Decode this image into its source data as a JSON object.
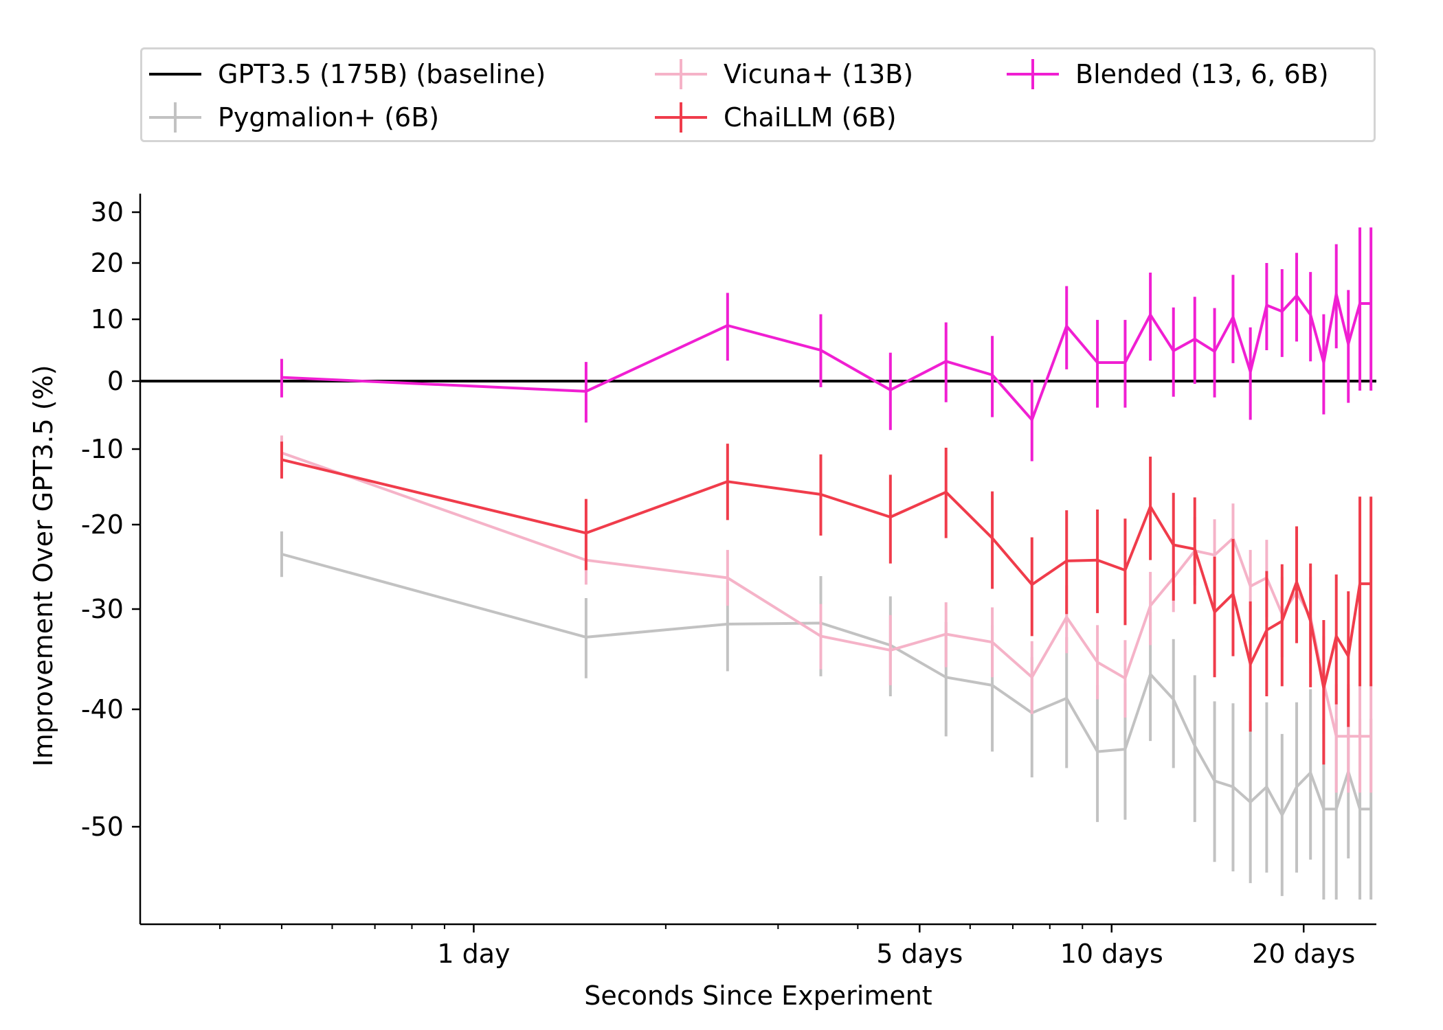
{
  "chart_data": {
    "type": "line",
    "xlabel": "Seconds Since Experiment",
    "ylabel": "Improvement Over GPT3.5 (%)",
    "x_scale": "log",
    "xlim_days": [
      0.3,
      26
    ],
    "ylim": [
      -55,
      33
    ],
    "x_ticks": [
      {
        "days": 1,
        "label": "1 day"
      },
      {
        "days": 5,
        "label": "5 days"
      },
      {
        "days": 10,
        "label": "10 days"
      },
      {
        "days": 20,
        "label": "20 days"
      }
    ],
    "y_ticks": [
      {
        "value": 30,
        "label": "30"
      },
      {
        "value": 20,
        "label": "20"
      },
      {
        "value": 10,
        "label": "10"
      },
      {
        "value": 0,
        "label": "0"
      },
      {
        "value": -10,
        "label": "-10"
      },
      {
        "value": -20,
        "label": "-20"
      },
      {
        "value": -30,
        "label": "-30"
      },
      {
        "value": -40,
        "label": "-40"
      },
      {
        "value": -50,
        "label": "-50"
      }
    ],
    "legend_position": "top, outside plot",
    "x_days": [
      0.5,
      1.5,
      2.5,
      3.5,
      4.5,
      5.5,
      6.5,
      7.5,
      8.5,
      9.5,
      10.5,
      11.5,
      12.5,
      13.5,
      14.5,
      15.5,
      16.5,
      17.5,
      18.5,
      19.5,
      20.5,
      21.5,
      22.5,
      23.5,
      24.5,
      25.5
    ],
    "baseline": {
      "name": "GPT3.5 (175B) (baseline)",
      "value": 0,
      "color": "#000000"
    },
    "series": [
      {
        "name": "Pygmalion+ (6B)",
        "color": "#c2c2c2",
        "values": [
          -23.5,
          -32.8,
          -31.5,
          -31.4,
          -33.6,
          -36.8,
          -37.6,
          -40.3,
          -38.9,
          -43.6,
          -43.4,
          -36.5,
          -39.0,
          -43.1,
          -46.1,
          -46.6,
          -47.9,
          -46.6,
          -49.0,
          -46.6,
          -45.4,
          -48.5,
          -48.5,
          -45.3,
          -48.5,
          -48.5
        ],
        "errors": [
          2.7,
          4.1,
          4.7,
          5.3,
          5.1,
          5.5,
          6.0,
          5.5,
          6.1,
          6.0,
          6.0,
          6.2,
          6.0,
          6.5,
          6.9,
          7.2,
          6.9,
          7.3,
          6.9,
          7.3,
          7.4,
          7.7,
          7.7,
          7.4,
          7.7,
          7.7
        ]
      },
      {
        "name": "Vicuna+ (13B)",
        "color": "#f5b3c8",
        "values": [
          -10.5,
          -24.2,
          -26.3,
          -32.7,
          -34.1,
          -32.5,
          -33.3,
          -36.8,
          -30.8,
          -35.3,
          -36.9,
          -29.6,
          -26.3,
          -23.1,
          -23.6,
          -21.6,
          -27.3,
          -26.3,
          -30.5,
          -28.0,
          -30.8,
          -37.4,
          -42.3,
          -42.3,
          -42.3,
          -42.3
        ],
        "errors": [
          2.5,
          2.9,
          3.3,
          3.3,
          3.5,
          3.3,
          3.5,
          3.6,
          3.6,
          3.7,
          3.8,
          4.0,
          4.0,
          4.1,
          4.3,
          4.4,
          4.3,
          4.5,
          4.3,
          4.5,
          4.6,
          4.7,
          4.8,
          4.8,
          4.8,
          4.8
        ]
      },
      {
        "name": "ChaiLLM (6B)",
        "color": "#f03c4b",
        "values": [
          -11.4,
          -21.0,
          -14.3,
          -16.0,
          -19.0,
          -15.7,
          -21.6,
          -27.1,
          -24.3,
          -24.2,
          -25.4,
          -17.6,
          -22.4,
          -22.9,
          -30.3,
          -28.2,
          -35.5,
          -32.1,
          -31.2,
          -26.8,
          -31.2,
          -37.9,
          -32.7,
          -34.7,
          -27.0,
          -27.0
        ],
        "errors": [
          2.5,
          4.4,
          5.1,
          5.3,
          5.6,
          5.9,
          6.0,
          5.6,
          6.2,
          6.2,
          6.2,
          6.6,
          6.6,
          6.5,
          6.5,
          6.5,
          6.4,
          6.6,
          6.5,
          6.6,
          6.6,
          6.8,
          6.8,
          6.8,
          10.7,
          10.7
        ]
      },
      {
        "name": "Blended (13, 6, 6B)",
        "color": "#f01fd2",
        "values": [
          0.6,
          -1.5,
          9.0,
          5.0,
          -1.3,
          3.2,
          1.0,
          -5.7,
          8.9,
          3.0,
          3.0,
          10.8,
          4.9,
          6.8,
          4.8,
          10.4,
          1.5,
          12.5,
          11.4,
          14.2,
          10.8,
          3.0,
          14.5,
          6.0,
          12.8,
          12.8
        ],
        "errors": [
          3.0,
          4.6,
          5.7,
          5.9,
          5.9,
          6.3,
          6.3,
          5.9,
          7.0,
          6.9,
          6.9,
          7.5,
          7.2,
          7.2,
          7.2,
          7.5,
          7.2,
          7.5,
          7.5,
          7.8,
          7.6,
          7.9,
          9.2,
          9.2,
          14.2,
          14.2
        ]
      }
    ]
  }
}
